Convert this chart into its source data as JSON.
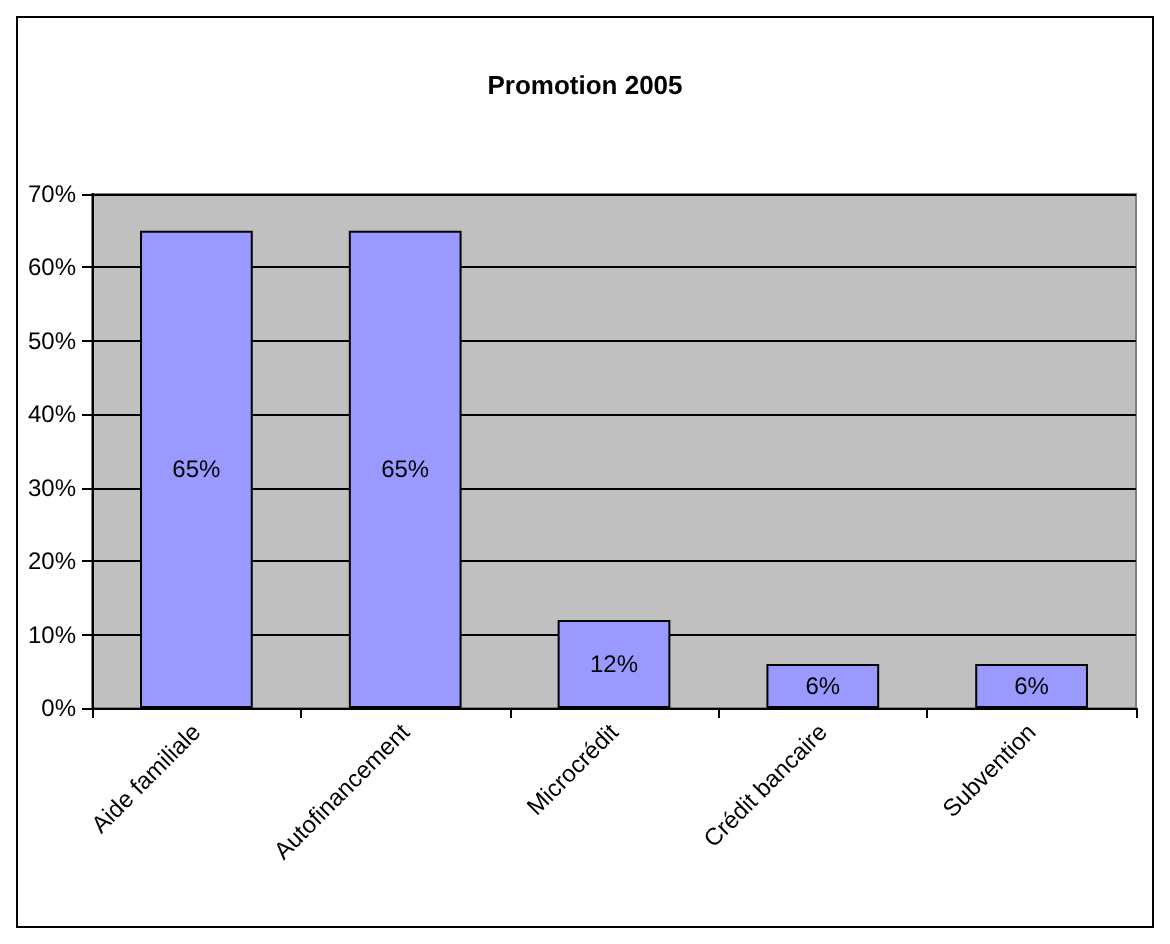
{
  "chart_data": {
    "type": "bar",
    "title": "Promotion 2005",
    "categories": [
      "Aide familiale",
      "Autofinancement",
      "Microcrédit",
      "Crédit bancaire",
      "Subvention"
    ],
    "values": [
      65,
      65,
      12,
      6,
      6
    ],
    "value_labels": [
      "65%",
      "65%",
      "12%",
      "6%",
      "6%"
    ],
    "color": "#9999ff",
    "ylim": [
      0,
      70
    ],
    "yticks": [
      {
        "value": 0,
        "label": "0%"
      },
      {
        "value": 10,
        "label": "10%"
      },
      {
        "value": 20,
        "label": "20%"
      },
      {
        "value": 30,
        "label": "30%"
      },
      {
        "value": 40,
        "label": "40%"
      },
      {
        "value": 50,
        "label": "50%"
      },
      {
        "value": 60,
        "label": "60%"
      },
      {
        "value": 70,
        "label": "70%"
      }
    ],
    "grid": "y"
  }
}
